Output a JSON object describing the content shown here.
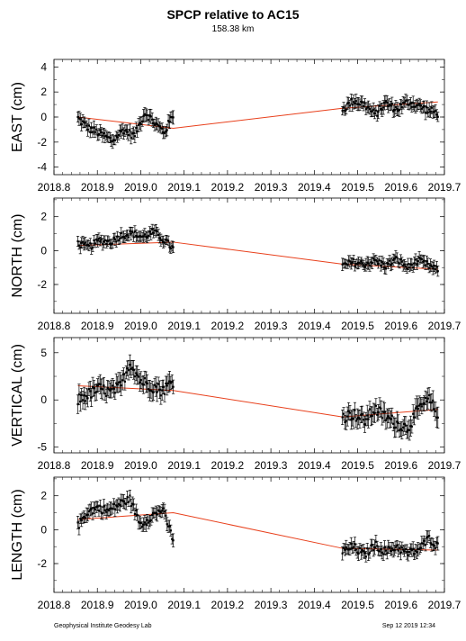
{
  "header": {
    "title": "SPCP relative to AC15",
    "subtitle": "158.38 km"
  },
  "footer": {
    "left": "Geophysical Institute Geodesy Lab",
    "right": "Sep 12 2019 12:34"
  },
  "colors": {
    "trend": "#e8401c",
    "points": "#000000"
  },
  "chart_data": [
    {
      "type": "scatter",
      "ylabel": "EAST (cm)",
      "xlim": [
        2018.8,
        2019.7
      ],
      "ylim": [
        -4.6,
        4.6
      ],
      "xticks": [
        "2018.8",
        "2018.9",
        "2019.0",
        "2019.1",
        "2019.2",
        "2019.3",
        "2019.4",
        "2019.5",
        "2019.6",
        "2019.7"
      ],
      "yticks": [
        "-4",
        "-2",
        "0",
        "2",
        "4"
      ],
      "trend": {
        "x": [
          2018.855,
          2019.075,
          2019.465,
          2019.685
        ],
        "y": [
          0.0,
          -0.9,
          0.7,
          1.2
        ]
      },
      "seg1": {
        "x0": 2018.855,
        "x1": 2019.075,
        "y0": 0.0,
        "y1": -0.9
      },
      "seg2": {
        "x0": 2019.465,
        "x1": 2019.685,
        "y0": 0.7,
        "y1": 1.2
      },
      "knots1": {
        "x": [
          2018.855,
          2018.88,
          2018.91,
          2018.935,
          2018.96,
          2018.985,
          2019.01,
          2019.035,
          2019.055,
          2019.075
        ],
        "y": [
          -0.1,
          -0.9,
          -1.4,
          -1.9,
          -1.0,
          -1.5,
          0.4,
          -0.6,
          -1.2,
          0.2
        ]
      },
      "knots2": {
        "x": [
          2019.465,
          2019.49,
          2019.515,
          2019.54,
          2019.565,
          2019.59,
          2019.615,
          2019.64,
          2019.665,
          2019.685
        ],
        "y": [
          0.6,
          1.3,
          1.0,
          0.2,
          1.1,
          0.6,
          1.2,
          0.9,
          0.5,
          0.3
        ]
      },
      "err": 0.45
    },
    {
      "type": "scatter",
      "ylabel": "NORTH (cm)",
      "xlim": [
        2018.8,
        2019.7
      ],
      "ylim": [
        -3.7,
        3.1
      ],
      "xticks": [
        "2018.8",
        "2018.9",
        "2019.0",
        "2019.1",
        "2019.2",
        "2019.3",
        "2019.4",
        "2019.5",
        "2019.6",
        "2019.7"
      ],
      "yticks": [
        "-2",
        "0",
        "2"
      ],
      "trend": {
        "x": [
          2018.855,
          2019.075,
          2019.465,
          2019.685
        ],
        "y": [
          0.3,
          0.5,
          -0.8,
          -1.1
        ]
      },
      "seg1": {
        "x0": 2018.855,
        "x1": 2019.075,
        "y0": 0.3,
        "y1": 0.5
      },
      "seg2": {
        "x0": 2019.465,
        "x1": 2019.685,
        "y0": -0.8,
        "y1": -1.1
      },
      "knots1": {
        "x": [
          2018.855,
          2018.88,
          2018.905,
          2018.93,
          2018.955,
          2018.98,
          2019.005,
          2019.03,
          2019.055,
          2019.075
        ],
        "y": [
          0.4,
          0.2,
          0.6,
          0.5,
          0.9,
          1.0,
          0.8,
          1.1,
          0.6,
          0.1
        ]
      },
      "knots2": {
        "x": [
          2019.465,
          2019.49,
          2019.515,
          2019.54,
          2019.565,
          2019.59,
          2019.615,
          2019.64,
          2019.665,
          2019.685
        ],
        "y": [
          -0.9,
          -0.7,
          -0.8,
          -0.6,
          -0.9,
          -0.5,
          -1.0,
          -0.6,
          -0.9,
          -1.2
        ]
      },
      "err": 0.3
    },
    {
      "type": "scatter",
      "ylabel": "VERTICAL (cm)",
      "xlim": [
        2018.8,
        2019.7
      ],
      "ylim": [
        -5.6,
        6.6
      ],
      "xticks": [
        "2018.8",
        "2018.9",
        "2019.0",
        "2019.1",
        "2019.2",
        "2019.3",
        "2019.4",
        "2019.5",
        "2019.6",
        "2019.7"
      ],
      "yticks": [
        "-5",
        "0",
        "5"
      ],
      "trend": {
        "x": [
          2018.855,
          2019.075,
          2019.465,
          2019.685
        ],
        "y": [
          1.5,
          1.0,
          -1.8,
          -1.0
        ]
      },
      "seg1": {
        "x0": 2018.855,
        "x1": 2019.075,
        "y0": 1.5,
        "y1": 1.0
      },
      "seg2": {
        "x0": 2019.465,
        "x1": 2019.685,
        "y0": -1.8,
        "y1": -1.0
      },
      "knots1": {
        "x": [
          2018.855,
          2018.88,
          2018.905,
          2018.93,
          2018.955,
          2018.975,
          2019.0,
          2019.025,
          2019.05,
          2019.075
        ],
        "y": [
          0.0,
          0.6,
          1.2,
          0.8,
          1.5,
          4.0,
          2.0,
          1.5,
          1.0,
          2.0
        ]
      },
      "knots2": {
        "x": [
          2019.465,
          2019.49,
          2019.515,
          2019.54,
          2019.565,
          2019.59,
          2019.615,
          2019.64,
          2019.665,
          2019.685
        ],
        "y": [
          -1.8,
          -1.5,
          -2.2,
          -1.0,
          -1.8,
          -2.5,
          -3.0,
          -1.0,
          0.0,
          -1.5
        ]
      },
      "err": 0.9
    },
    {
      "type": "scatter",
      "ylabel": "LENGTH (cm)",
      "xlim": [
        2018.8,
        2019.7
      ],
      "ylim": [
        -3.7,
        3.1
      ],
      "xticks": [
        "2018.8",
        "2018.9",
        "2019.0",
        "2019.1",
        "2019.2",
        "2019.3",
        "2019.4",
        "2019.5",
        "2019.6",
        "2019.7"
      ],
      "yticks": [
        "-2",
        "0",
        "2"
      ],
      "trend": {
        "x": [
          2018.855,
          2019.075,
          2019.465,
          2019.685
        ],
        "y": [
          0.6,
          1.0,
          -1.1,
          -1.2
        ]
      },
      "seg1": {
        "x0": 2018.855,
        "x1": 2019.075,
        "y0": 0.6,
        "y1": 1.0
      },
      "seg2": {
        "x0": 2019.465,
        "x1": 2019.685,
        "y0": -1.1,
        "y1": -1.2
      },
      "knots1": {
        "x": [
          2018.855,
          2018.875,
          2018.9,
          2018.925,
          2018.95,
          2018.975,
          2019.0,
          2019.025,
          2019.05,
          2019.075
        ],
        "y": [
          0.2,
          1.0,
          1.3,
          1.1,
          1.5,
          1.8,
          0.3,
          0.8,
          1.2,
          -0.6
        ]
      },
      "knots2": {
        "x": [
          2019.465,
          2019.49,
          2019.515,
          2019.54,
          2019.565,
          2019.59,
          2019.615,
          2019.64,
          2019.665,
          2019.685
        ],
        "y": [
          -1.3,
          -1.0,
          -1.5,
          -0.9,
          -1.3,
          -1.0,
          -1.4,
          -1.2,
          -0.5,
          -1.0
        ]
      },
      "err": 0.35
    }
  ]
}
